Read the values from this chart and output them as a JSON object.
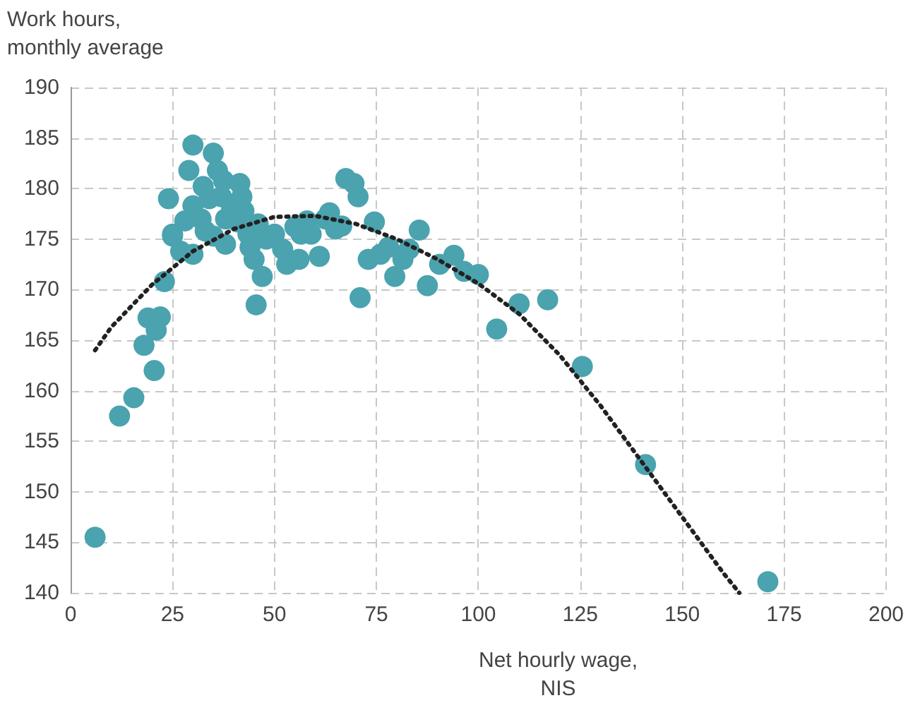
{
  "chart_data": {
    "type": "scatter",
    "xlabel": "Net hourly wage,\nNIS",
    "ylabel": "Work hours,\nmonthly average",
    "xlim": [
      0,
      200
    ],
    "xticks": [
      0,
      25,
      50,
      75,
      100,
      125,
      150,
      175,
      200
    ],
    "ylim": [
      140,
      190
    ],
    "yticks": [
      140,
      145,
      150,
      155,
      160,
      165,
      170,
      175,
      180,
      185,
      190
    ],
    "grid": true,
    "marker": "circle",
    "series": [
      {
        "color": "#4aa3ae",
        "x": [
          6,
          12,
          15.5,
          18,
          19,
          20.5,
          21,
          22,
          23,
          24,
          25,
          25,
          27,
          28,
          29,
          30,
          30,
          30,
          32,
          32.5,
          33,
          34,
          35,
          35,
          36,
          37,
          37.5,
          38,
          38,
          39.5,
          41,
          41.5,
          42,
          42.5,
          43.5,
          44,
          45,
          45.5,
          46,
          47,
          48,
          50,
          52,
          53,
          55,
          56,
          56.5,
          58,
          59,
          61,
          62.5,
          63.5,
          65,
          66.5,
          67.5,
          69.5,
          70.5,
          71,
          73,
          74.5,
          76,
          78,
          79.5,
          81.5,
          83,
          85.5,
          87.5,
          90.5,
          94,
          96.5,
          100,
          104.5,
          110,
          117,
          125.5,
          141,
          171
        ],
        "values": [
          145.5,
          157.5,
          159.3,
          164.5,
          167.2,
          162,
          166,
          167.3,
          170.8,
          179,
          175.3,
          175.5,
          173.8,
          176.8,
          181.8,
          173.5,
          184.3,
          178.3,
          177,
          180.2,
          175.8,
          179,
          175.3,
          183.5,
          181.8,
          179.2,
          180.8,
          174.5,
          177,
          178,
          176.7,
          180.5,
          179.2,
          177.8,
          175.5,
          174.2,
          173,
          168.5,
          176.5,
          171.3,
          175,
          175.5,
          174,
          172.5,
          176.2,
          173,
          175.5,
          176.8,
          175.5,
          173.3,
          177,
          177.6,
          176,
          176.3,
          181,
          180.5,
          179.2,
          169.2,
          173,
          176.7,
          173.5,
          174.2,
          171.3,
          173,
          174,
          175.9,
          170.4,
          172.5,
          173.4,
          171.8,
          171.5,
          166.1,
          168.6,
          169,
          162.4,
          152.7,
          141.1
        ]
      },
      {
        "type": "line",
        "color": "#222222",
        "line_style": "dotted",
        "marker": "none",
        "x": [
          6,
          10,
          20,
          30,
          40,
          50,
          60,
          70,
          80,
          90,
          100,
          110,
          120,
          130,
          140,
          150,
          160,
          164
        ],
        "values": [
          164,
          166.3,
          170.5,
          173.8,
          176,
          177.2,
          177.3,
          176.5,
          175,
          173,
          170.6,
          167.6,
          163.5,
          158.5,
          153,
          147.5,
          142,
          140
        ]
      }
    ]
  }
}
